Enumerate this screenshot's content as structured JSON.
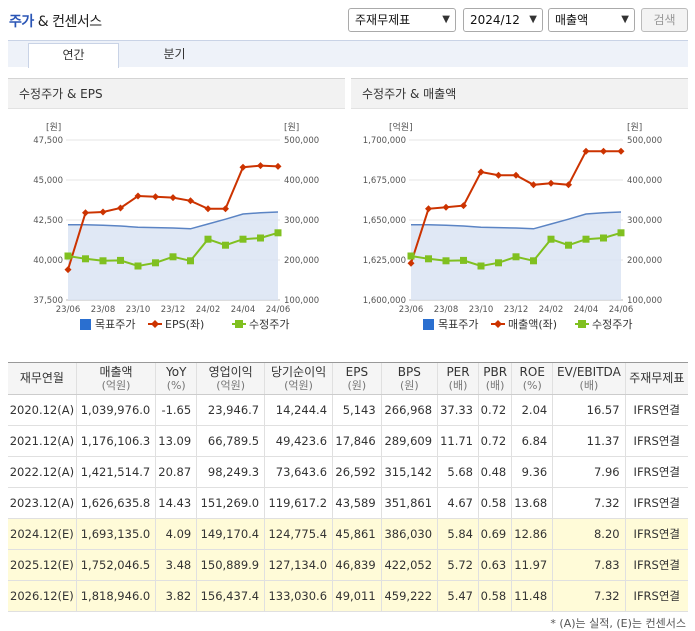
{
  "header": {
    "title_prefix": "주가",
    "title_rest": " & 컨센서스",
    "select_type": "주재무제표",
    "select_period": "2024/12",
    "select_metric": "매출액",
    "search_label": "검색"
  },
  "tabs": [
    {
      "label": "연간"
    },
    {
      "label": "분기"
    }
  ],
  "charts": {
    "left": {
      "title": "수정주가 & EPS",
      "left_unit": "[원]",
      "right_unit": "[원]",
      "legend": [
        "목표주가",
        "EPS(좌)",
        "수정주가"
      ]
    },
    "right": {
      "title": "수정주가 & 매출액",
      "left_unit": "[억원]",
      "right_unit": "[원]",
      "legend": [
        "목표주가",
        "매출액(좌)",
        "수정주가"
      ]
    }
  },
  "chart_data": [
    {
      "type": "line",
      "title": "수정주가 & EPS",
      "x": [
        "23/06",
        "23/07",
        "23/08",
        "23/09",
        "23/10",
        "23/11",
        "23/12",
        "24/01",
        "24/02",
        "24/03",
        "24/04",
        "24/05",
        "24/06"
      ],
      "xticks": [
        "23/06",
        "23/08",
        "23/10",
        "23/12",
        "24/02",
        "24/04",
        "24/06"
      ],
      "left_axis": {
        "range": [
          37500,
          47500
        ],
        "ticks": [
          "37,500",
          "40,000",
          "42,500",
          "45,000",
          "47,500"
        ]
      },
      "right_axis": {
        "range": [
          100000,
          500000
        ],
        "ticks": [
          "100,000",
          "200,000",
          "300,000",
          "400,000",
          "500,000"
        ]
      },
      "series": [
        {
          "name": "목표주가",
          "axis": "right",
          "color": "#5b84c4",
          "values": [
            288000,
            288000,
            287000,
            285000,
            282000,
            281000,
            280000,
            278000,
            290000,
            302000,
            315000,
            318000,
            320000
          ]
        },
        {
          "name": "EPS(좌)",
          "axis": "left",
          "color": "#cc3300",
          "values": [
            39400,
            42950,
            43000,
            43250,
            44000,
            43950,
            43900,
            43700,
            43200,
            43200,
            45800,
            45900,
            45850
          ]
        },
        {
          "name": "수정주가",
          "axis": "right",
          "color": "#80c020",
          "values": [
            210000,
            203000,
            198000,
            199000,
            185000,
            193000,
            208000,
            198000,
            252000,
            237000,
            252000,
            255000,
            268000
          ]
        }
      ],
      "legend": [
        "목표주가",
        "EPS(좌)",
        "수정주가"
      ]
    },
    {
      "type": "line",
      "title": "수정주가 & 매출액",
      "x": [
        "23/06",
        "23/07",
        "23/08",
        "23/09",
        "23/10",
        "23/11",
        "23/12",
        "24/01",
        "24/02",
        "24/03",
        "24/04",
        "24/05",
        "24/06"
      ],
      "xticks": [
        "23/06",
        "23/08",
        "23/10",
        "23/12",
        "24/02",
        "24/04",
        "24/06"
      ],
      "left_axis": {
        "range": [
          1600000,
          1700000
        ],
        "ticks": [
          "1,600,000",
          "1,625,000",
          "1,650,000",
          "1,675,000",
          "1,700,000"
        ]
      },
      "right_axis": {
        "range": [
          100000,
          500000
        ],
        "ticks": [
          "100,000",
          "200,000",
          "300,000",
          "400,000",
          "500,000"
        ]
      },
      "series": [
        {
          "name": "목표주가",
          "axis": "right",
          "color": "#5b84c4",
          "values": [
            288000,
            288000,
            287000,
            285000,
            282000,
            281000,
            280000,
            278000,
            290000,
            302000,
            315000,
            318000,
            320000
          ]
        },
        {
          "name": "매출액(좌)",
          "axis": "left",
          "color": "#cc3300",
          "values": [
            1623000,
            1657000,
            1658000,
            1659000,
            1680000,
            1678000,
            1678000,
            1672000,
            1673000,
            1672000,
            1693000,
            1693000,
            1693000
          ]
        },
        {
          "name": "수정주가",
          "axis": "right",
          "color": "#80c020",
          "values": [
            210000,
            203000,
            198000,
            199000,
            185000,
            193000,
            208000,
            198000,
            252000,
            237000,
            252000,
            255000,
            268000
          ]
        }
      ],
      "legend": [
        "목표주가",
        "매출액(좌)",
        "수정주가"
      ]
    }
  ],
  "table": {
    "headers": [
      {
        "main": "재무연월",
        "sub": ""
      },
      {
        "main": "매출액",
        "sub": "(억원)"
      },
      {
        "main": "YoY",
        "sub": "(%)"
      },
      {
        "main": "영업이익",
        "sub": "(억원)"
      },
      {
        "main": "당기순이익",
        "sub": "(억원)"
      },
      {
        "main": "EPS",
        "sub": "(원)"
      },
      {
        "main": "BPS",
        "sub": "(원)"
      },
      {
        "main": "PER",
        "sub": "(배)"
      },
      {
        "main": "PBR",
        "sub": "(배)"
      },
      {
        "main": "ROE",
        "sub": "(%)"
      },
      {
        "main": "EV/EBITDA",
        "sub": "(배)"
      },
      {
        "main": "주재무제표",
        "sub": ""
      }
    ],
    "rows": [
      [
        "2020.12(A)",
        "1,039,976.0",
        "-1.65",
        "23,946.7",
        "14,244.4",
        "5,143",
        "266,968",
        "37.33",
        "0.72",
        "2.04",
        "16.57",
        "IFRS연결"
      ],
      [
        "2021.12(A)",
        "1,176,106.3",
        "13.09",
        "66,789.5",
        "49,423.6",
        "17,846",
        "289,609",
        "11.71",
        "0.72",
        "6.84",
        "11.37",
        "IFRS연결"
      ],
      [
        "2022.12(A)",
        "1,421,514.7",
        "20.87",
        "98,249.3",
        "73,643.6",
        "26,592",
        "315,142",
        "5.68",
        "0.48",
        "9.36",
        "7.96",
        "IFRS연결"
      ],
      [
        "2023.12(A)",
        "1,626,635.8",
        "14.43",
        "151,269.0",
        "119,617.2",
        "43,589",
        "351,861",
        "4.67",
        "0.58",
        "13.68",
        "7.32",
        "IFRS연결"
      ],
      [
        "2024.12(E)",
        "1,693,135.0",
        "4.09",
        "149,170.4",
        "124,775.4",
        "45,861",
        "386,030",
        "5.84",
        "0.69",
        "12.86",
        "8.20",
        "IFRS연결"
      ],
      [
        "2025.12(E)",
        "1,752,046.5",
        "3.48",
        "150,889.9",
        "127,134.0",
        "46,839",
        "422,052",
        "5.72",
        "0.63",
        "11.97",
        "7.83",
        "IFRS연결"
      ],
      [
        "2026.12(E)",
        "1,818,946.0",
        "3.82",
        "156,437.4",
        "133,030.6",
        "49,011",
        "459,222",
        "5.47",
        "0.58",
        "11.48",
        "7.32",
        "IFRS연결"
      ]
    ],
    "estimate_flags": [
      false,
      false,
      false,
      false,
      true,
      true,
      true
    ]
  },
  "footnote": "* (A)는 실적, (E)는 컨센서스",
  "colors": {
    "target": "#5b84c4",
    "eps": "#cc3300",
    "price": "#80c020",
    "accent": "#2a55b5",
    "estimate_bg": "#fffbd8"
  }
}
